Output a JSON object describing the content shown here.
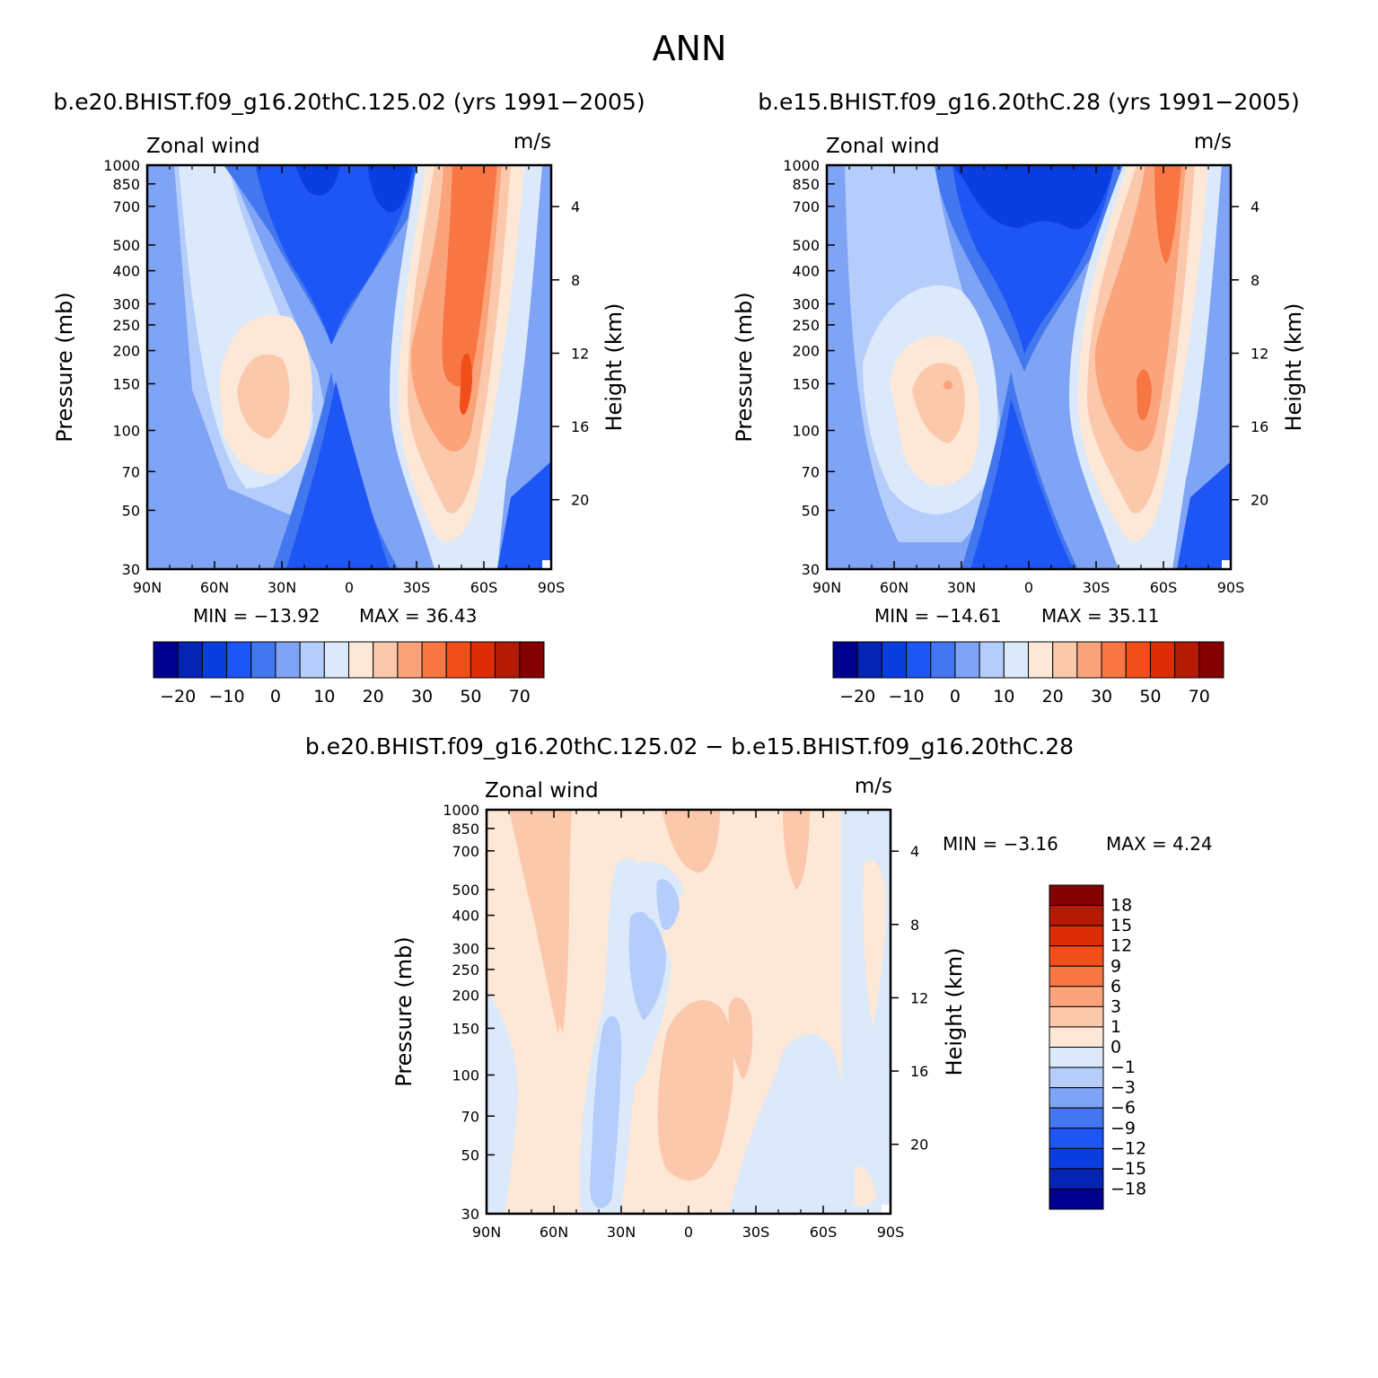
{
  "figure": {
    "title": "ANN"
  },
  "chart_data": [
    {
      "type": "heatmap",
      "id": "p1",
      "title": "b.e20.BHIST.f09_g16.20thC.125.02 (yrs 1991−2005)",
      "variable_label": "Zonal wind",
      "units": "m/s",
      "ylabel": "Pressure (mb)",
      "y2label": "Height (km)",
      "x_ticks": [
        "90N",
        "60N",
        "30N",
        "0",
        "30S",
        "60S",
        "90S"
      ],
      "y_ticks": [
        "30",
        "50",
        "70",
        "100",
        "150",
        "200",
        "250",
        "300",
        "400",
        "500",
        "700",
        "850",
        "1000"
      ],
      "y2_ticks": [
        "20",
        "16",
        "12",
        "8",
        "4"
      ],
      "xlim": [
        -90,
        90
      ],
      "ylim": [
        1000,
        30
      ],
      "y_scale": "log",
      "min_text": "MIN = −13.92",
      "max_text": "MAX = 36.43",
      "colorbar": {
        "orientation": "horizontal",
        "labels": [
          "−20",
          "−10",
          "0",
          "10",
          "20",
          "30",
          "50",
          "70"
        ],
        "colors": [
          "#00008f",
          "#0524b3",
          "#0a3ee0",
          "#1e56f5",
          "#4277ef",
          "#7fa3f5",
          "#b4cdfb",
          "#dbe9fb",
          "#fde8d7",
          "#fcc8ac",
          "#fba47b",
          "#f87544",
          "#f24e19",
          "#dc2d06",
          "#b51b04",
          "#850000"
        ]
      }
    },
    {
      "type": "heatmap",
      "id": "p2",
      "title": "b.e15.BHIST.f09_g16.20thC.28 (yrs 1991−2005)",
      "variable_label": "Zonal wind",
      "units": "m/s",
      "ylabel": "Pressure (mb)",
      "y2label": "Height (km)",
      "x_ticks": [
        "90N",
        "60N",
        "30N",
        "0",
        "30S",
        "60S",
        "90S"
      ],
      "y_ticks": [
        "30",
        "50",
        "70",
        "100",
        "150",
        "200",
        "250",
        "300",
        "400",
        "500",
        "700",
        "850",
        "1000"
      ],
      "y2_ticks": [
        "20",
        "16",
        "12",
        "8",
        "4"
      ],
      "xlim": [
        -90,
        90
      ],
      "ylim": [
        1000,
        30
      ],
      "y_scale": "log",
      "min_text": "MIN = −14.61",
      "max_text": "MAX = 35.11",
      "colorbar": {
        "orientation": "horizontal",
        "labels": [
          "−20",
          "−10",
          "0",
          "10",
          "20",
          "30",
          "50",
          "70"
        ],
        "colors": [
          "#00008f",
          "#0524b3",
          "#0a3ee0",
          "#1e56f5",
          "#4277ef",
          "#7fa3f5",
          "#b4cdfb",
          "#dbe9fb",
          "#fde8d7",
          "#fcc8ac",
          "#fba47b",
          "#f87544",
          "#f24e19",
          "#dc2d06",
          "#b51b04",
          "#850000"
        ]
      }
    },
    {
      "type": "heatmap",
      "id": "p3",
      "title": "b.e20.BHIST.f09_g16.20thC.125.02 − b.e15.BHIST.f09_g16.20thC.28",
      "variable_label": "Zonal wind",
      "units": "m/s",
      "ylabel": "Pressure (mb)",
      "y2label": "Height (km)",
      "x_ticks": [
        "90N",
        "60N",
        "30N",
        "0",
        "30S",
        "60S",
        "90S"
      ],
      "y_ticks": [
        "30",
        "50",
        "70",
        "100",
        "150",
        "200",
        "250",
        "300",
        "400",
        "500",
        "700",
        "850",
        "1000"
      ],
      "y2_ticks": [
        "20",
        "16",
        "12",
        "8",
        "4"
      ],
      "xlim": [
        -90,
        90
      ],
      "ylim": [
        1000,
        30
      ],
      "y_scale": "log",
      "min_text": "MIN = −3.16",
      "max_text": "MAX = 4.24",
      "colorbar": {
        "orientation": "vertical",
        "labels": [
          "18",
          "15",
          "12",
          "9",
          "6",
          "3",
          "1",
          "0",
          "−1",
          "−3",
          "−6",
          "−9",
          "−12",
          "−15",
          "−18"
        ],
        "colors": [
          "#850000",
          "#b51b04",
          "#dc2d06",
          "#f24e19",
          "#f87544",
          "#fba47b",
          "#fcc8ac",
          "#fde8d7",
          "#dbe9fb",
          "#b4cdfb",
          "#7fa3f5",
          "#4277ef",
          "#1e56f5",
          "#0a3ee0",
          "#0524b3",
          "#00008f"
        ]
      }
    }
  ]
}
